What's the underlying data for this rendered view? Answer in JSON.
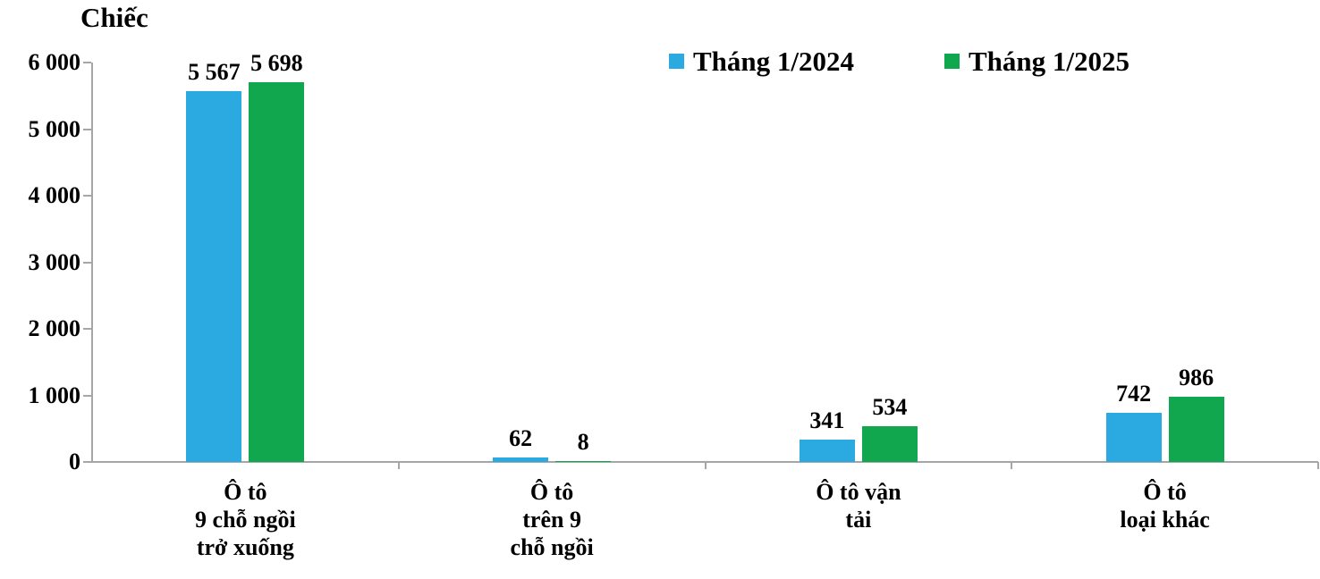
{
  "title": "Chiếc",
  "colors": {
    "series1": "#2BAAE2",
    "series2": "#10A74F",
    "axis": "#A6A6A6",
    "text": "#000000",
    "background": "#FFFFFF"
  },
  "legend": [
    {
      "label": "Tháng 1/2024",
      "color": "#2BAAE2"
    },
    {
      "label": "Tháng 1/2025",
      "color": "#10A74F"
    }
  ],
  "chart_data": {
    "type": "bar",
    "title": "Chiếc",
    "ylabel": "Chiếc",
    "xlabel": "",
    "categories": [
      "Ô tô\n9 chỗ ngồi\ntrở xuống",
      "Ô tô\ntrên 9\nchỗ ngồi",
      "Ô tô vận\ntải",
      "Ô tô\nloại khác"
    ],
    "series": [
      {
        "name": "Tháng 1/2024",
        "color": "#2BAAE2",
        "values": [
          5567,
          62,
          341,
          742
        ]
      },
      {
        "name": "Tháng 1/2025",
        "color": "#10A74F",
        "values": [
          5698,
          8,
          534,
          986
        ]
      }
    ],
    "ylim": [
      0,
      6000
    ],
    "ytick_step": 1000,
    "ytick_labels": [
      "0",
      "1 000",
      "2 000",
      "3 000",
      "4 000",
      "5 000",
      "6 000"
    ],
    "grid": false,
    "legend_position": "top"
  }
}
